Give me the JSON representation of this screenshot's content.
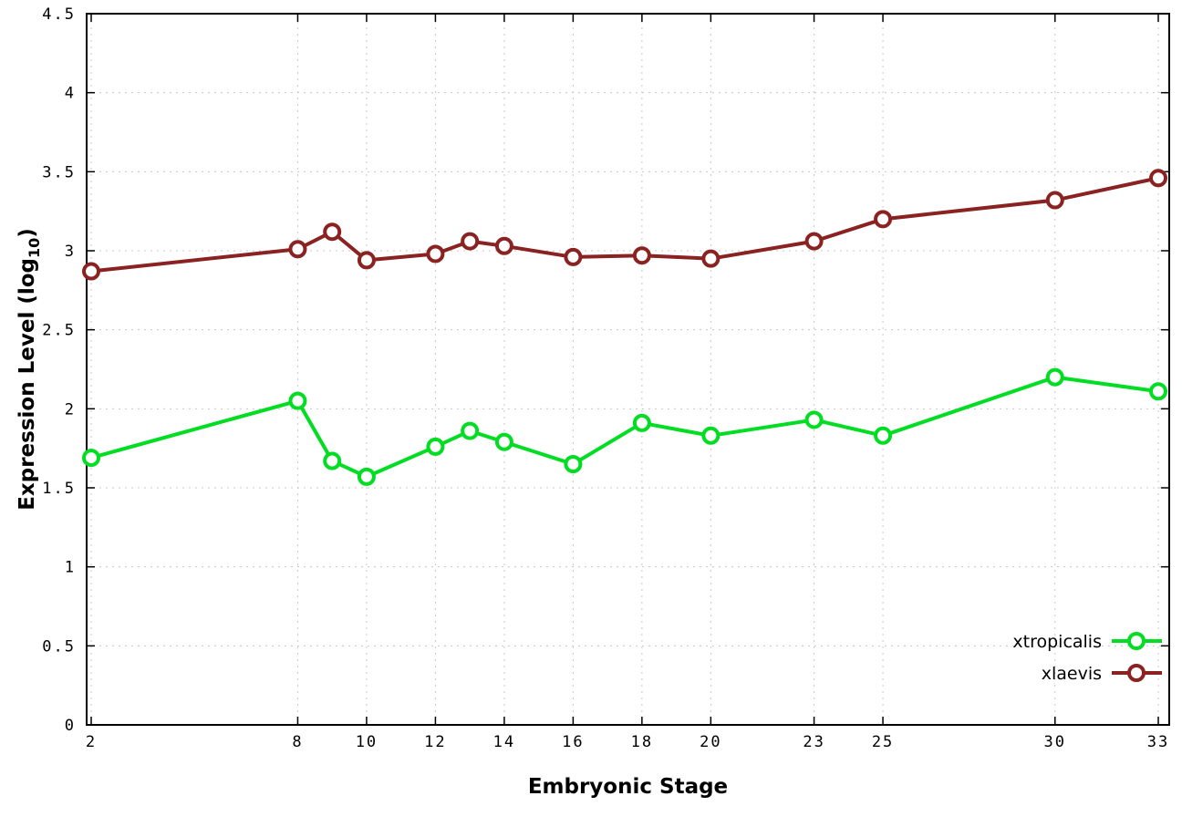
{
  "chart_data": {
    "type": "line",
    "title": "",
    "xlabel": "Embryonic Stage",
    "ylabel": "Expression Level (log10)",
    "ylabel_parts": {
      "prefix": "Expression Level (log",
      "sub": "10",
      "suffix": ")"
    },
    "xlim": [
      2,
      33
    ],
    "ylim": [
      0,
      4.5
    ],
    "x_ticks": [
      2,
      8,
      10,
      12,
      14,
      16,
      18,
      20,
      23,
      25,
      30,
      33
    ],
    "y_ticks": [
      0,
      0.5,
      1,
      1.5,
      2,
      2.5,
      3,
      3.5,
      4,
      4.5
    ],
    "grid": true,
    "grid_color": "#c8c8c8",
    "border_color": "#000000",
    "legend_position": "bottom-right",
    "x": [
      2,
      8,
      9,
      10,
      12,
      13,
      14,
      16,
      18,
      20,
      23,
      25,
      30,
      33
    ],
    "series": [
      {
        "name": "xtropicalis",
        "color": "#00dd22",
        "values": [
          1.69,
          2.05,
          1.67,
          1.57,
          1.76,
          1.86,
          1.79,
          1.65,
          1.91,
          1.83,
          1.93,
          1.83,
          2.2,
          2.11
        ]
      },
      {
        "name": "xlaevis",
        "color": "#8b2222",
        "values": [
          2.87,
          3.01,
          3.12,
          2.94,
          2.98,
          3.06,
          3.03,
          2.96,
          2.97,
          2.95,
          3.06,
          3.2,
          3.32,
          3.46
        ]
      }
    ]
  }
}
